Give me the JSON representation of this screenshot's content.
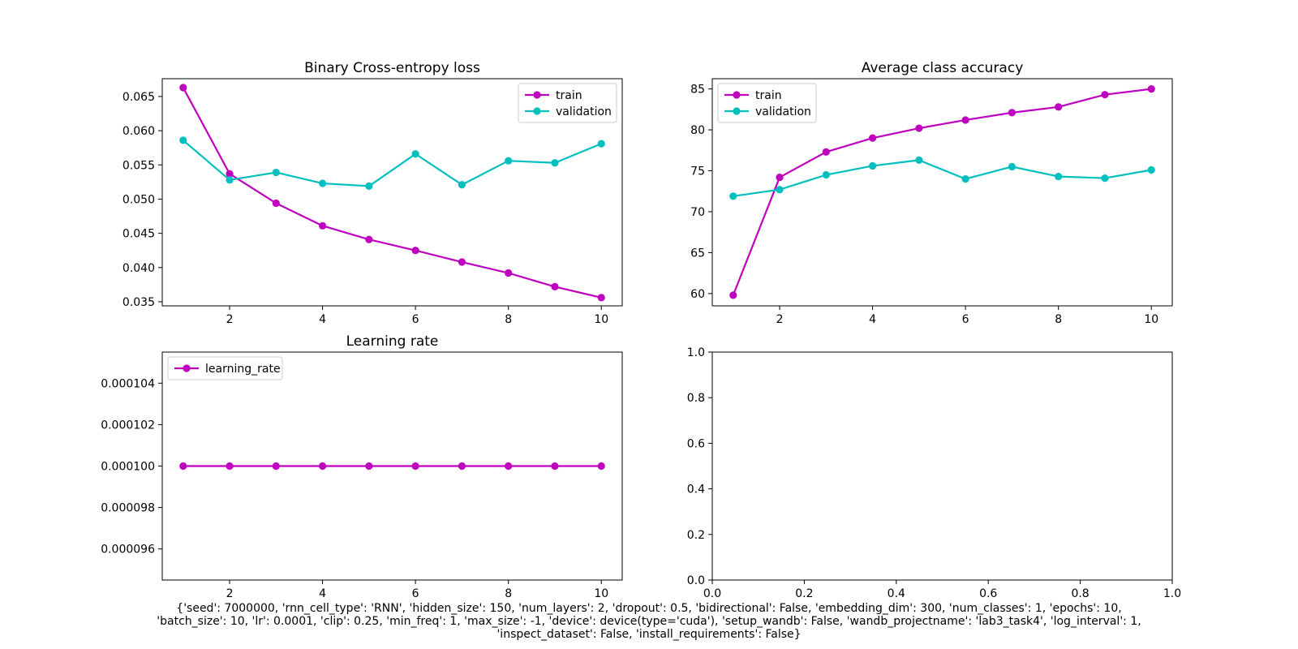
{
  "colors": {
    "train": "#bf00bf",
    "validation": "#00bfbf",
    "learning_rate": "#bf00bf"
  },
  "chart_data": [
    {
      "type": "line",
      "title": "Binary Cross-entropy loss",
      "xlabel": "",
      "ylabel": "",
      "x": [
        1,
        2,
        3,
        4,
        5,
        6,
        7,
        8,
        9,
        10
      ],
      "xlim": [
        0.55,
        10.45
      ],
      "ylim": [
        0.0344,
        0.0676
      ],
      "xticks": [
        2,
        4,
        6,
        8,
        10
      ],
      "yticks": [
        0.035,
        0.04,
        0.045,
        0.05,
        0.055,
        0.06,
        0.065
      ],
      "ytick_decimals": 3,
      "legend": "top-right",
      "grid": false,
      "series": [
        {
          "name": "train",
          "color": "#bf00bf",
          "values": [
            0.0663,
            0.0537,
            0.0494,
            0.0461,
            0.0441,
            0.0425,
            0.0408,
            0.0392,
            0.0372,
            0.0356
          ]
        },
        {
          "name": "validation",
          "color": "#00bfbf",
          "values": [
            0.0586,
            0.0528,
            0.0539,
            0.0523,
            0.0519,
            0.0566,
            0.0521,
            0.0556,
            0.0553,
            0.0581
          ]
        }
      ]
    },
    {
      "type": "line",
      "title": "Average class accuracy",
      "xlabel": "",
      "ylabel": "",
      "x": [
        1,
        2,
        3,
        4,
        5,
        6,
        7,
        8,
        9,
        10
      ],
      "xlim": [
        0.55,
        10.45
      ],
      "ylim": [
        58.5,
        86.25
      ],
      "xticks": [
        2,
        4,
        6,
        8,
        10
      ],
      "yticks": [
        60,
        65,
        70,
        75,
        80,
        85
      ],
      "ytick_decimals": 0,
      "legend": "top-left",
      "grid": false,
      "series": [
        {
          "name": "train",
          "color": "#bf00bf",
          "values": [
            59.8,
            74.2,
            77.3,
            79.0,
            80.2,
            81.2,
            82.1,
            82.8,
            84.3,
            85.0
          ]
        },
        {
          "name": "validation",
          "color": "#00bfbf",
          "values": [
            71.9,
            72.7,
            74.5,
            75.6,
            76.3,
            74.0,
            75.5,
            74.3,
            74.1,
            75.1
          ]
        }
      ]
    },
    {
      "type": "line",
      "title": "Learning rate",
      "xlabel": "",
      "ylabel": "",
      "x": [
        1,
        2,
        3,
        4,
        5,
        6,
        7,
        8,
        9,
        10
      ],
      "xlim": [
        0.55,
        10.45
      ],
      "ylim": [
        9.45e-05,
        0.0001055
      ],
      "xticks": [
        2,
        4,
        6,
        8,
        10
      ],
      "yticks": [
        9.6e-05,
        9.8e-05,
        0.0001,
        0.000102,
        0.000104
      ],
      "ytick_decimals": 6,
      "legend": "top-left",
      "grid": false,
      "series": [
        {
          "name": "learning_rate",
          "color": "#bf00bf",
          "values": [
            0.0001,
            0.0001,
            0.0001,
            0.0001,
            0.0001,
            0.0001,
            0.0001,
            0.0001,
            0.0001,
            0.0001
          ]
        }
      ]
    },
    {
      "type": "line",
      "title": "",
      "xlabel": "",
      "ylabel": "",
      "xlim": [
        0,
        1
      ],
      "ylim": [
        0,
        1
      ],
      "xticks": [
        0.0,
        0.2,
        0.4,
        0.6,
        0.8,
        1.0
      ],
      "yticks": [
        0.0,
        0.2,
        0.4,
        0.6,
        0.8,
        1.0
      ],
      "xtick_decimals": 1,
      "ytick_decimals": 1,
      "series": []
    }
  ],
  "caption": {
    "lines": [
      "{'seed': 7000000, 'rnn_cell_type': 'RNN', 'hidden_size': 150, 'num_layers': 2, 'dropout': 0.5, 'bidirectional': False, 'embedding_dim': 300, 'num_classes': 1, 'epochs': 10,",
      "'batch_size': 10, 'lr': 0.0001, 'clip': 0.25, 'min_freq': 1, 'max_size': -1, 'device': device(type='cuda'), 'setup_wandb': False, 'wandb_projectname': 'lab3_task4', 'log_interval': 1,",
      "'inspect_dataset': False, 'install_requirements': False}"
    ]
  }
}
